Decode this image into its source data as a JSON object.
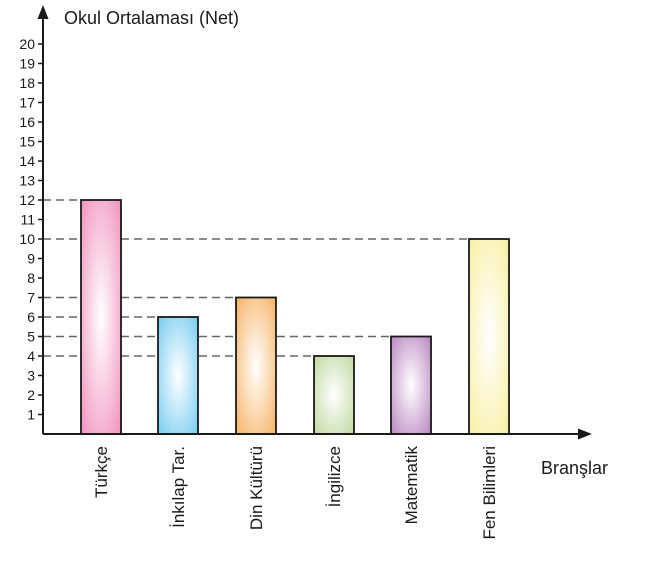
{
  "chart_data": {
    "type": "bar",
    "title": "",
    "ylabel": "Okul Ortalaması (Net)",
    "xlabel": "Branşlar",
    "categories": [
      "Türkçe",
      "İnkılap Tar.",
      "Din Kültürü",
      "İngilizce",
      "Matematik",
      "Fen Bilimleri"
    ],
    "values": [
      12,
      6,
      7,
      4,
      5,
      10
    ],
    "ylim": [
      0,
      20
    ],
    "yticks": [
      1,
      2,
      3,
      4,
      5,
      6,
      7,
      8,
      9,
      10,
      11,
      12,
      13,
      14,
      15,
      16,
      17,
      18,
      19,
      20
    ],
    "bar_colors": [
      "#f08ab8",
      "#6cc8ef",
      "#f6ad5a",
      "#bcd69a",
      "#b57fbd",
      "#f7ee9a"
    ],
    "reference_lines": "dashed lines from y-axis to bar tops",
    "grid": false,
    "legend": "none"
  }
}
